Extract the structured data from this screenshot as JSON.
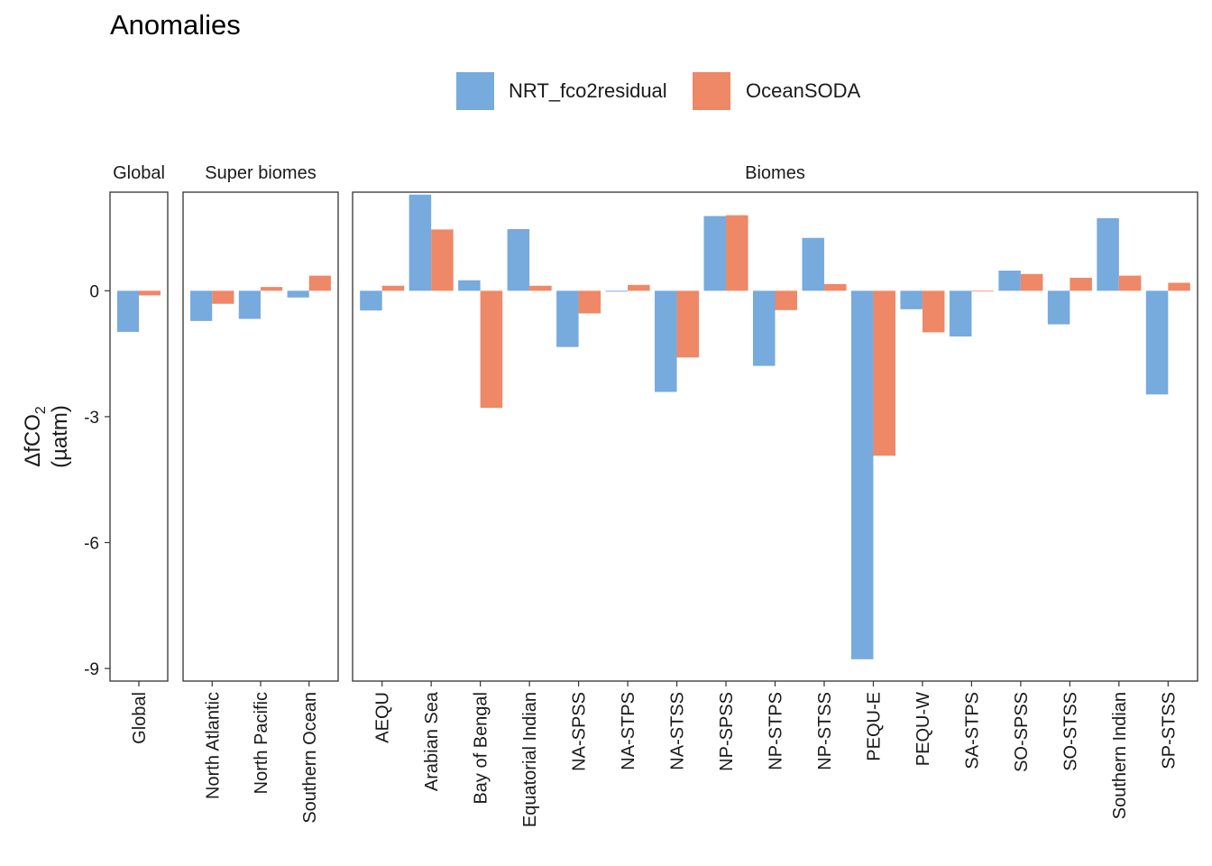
{
  "title": "Anomalies",
  "legend": {
    "position": "top",
    "items": [
      {
        "label": "NRT_fco2residual",
        "color": "#77AADD"
      },
      {
        "label": "OceanSODA",
        "color": "#EE8866"
      }
    ]
  },
  "y_axis": {
    "label_line1": "ΔfCO",
    "label_subscript": "2",
    "label_line2": "(µatm)",
    "ticks": [
      {
        "value": 0,
        "label": "0"
      },
      {
        "value": -3,
        "label": "-3"
      },
      {
        "value": -6,
        "label": "-6"
      },
      {
        "value": -9,
        "label": "-9"
      }
    ]
  },
  "chart_data": {
    "type": "bar",
    "title": "Anomalies",
    "ylabel": "ΔfCO2 (µatm)",
    "ylim": [
      -9.3,
      2.35
    ],
    "grid": false,
    "series_names": [
      "NRT_fco2residual",
      "OceanSODA"
    ],
    "panels": [
      {
        "strip": "Global",
        "categories": [
          "Global"
        ],
        "series": [
          {
            "name": "NRT_fco2residual",
            "values": [
              -0.98
            ]
          },
          {
            "name": "OceanSODA",
            "values": [
              -0.11
            ]
          }
        ]
      },
      {
        "strip": "Super biomes",
        "categories": [
          "North Atlantic",
          "North Pacific",
          "Southern Ocean"
        ],
        "series": [
          {
            "name": "NRT_fco2residual",
            "values": [
              -0.72,
              -0.67,
              -0.16
            ]
          },
          {
            "name": "OceanSODA",
            "values": [
              -0.31,
              0.09,
              0.36
            ]
          }
        ]
      },
      {
        "strip": "Biomes",
        "categories": [
          "AEQU",
          "Arabian Sea",
          "Bay of Bengal",
          "Equatorial Indian",
          "NA-SPSS",
          "NA-STPS",
          "NA-STSS",
          "NP-SPSS",
          "NP-STPS",
          "NP-STSS",
          "PEQU-E",
          "PEQU-W",
          "SA-STPS",
          "SO-SPSS",
          "SO-STSS",
          "Southern Indian",
          "SP-STSS"
        ],
        "series": [
          {
            "name": "NRT_fco2residual",
            "values": [
              -0.47,
              2.29,
              0.25,
              1.47,
              -1.34,
              -0.02,
              -2.41,
              1.78,
              -1.79,
              1.26,
              -8.78,
              -0.44,
              -1.09,
              0.48,
              -0.8,
              1.73,
              -2.47
            ]
          },
          {
            "name": "OceanSODA",
            "values": [
              0.12,
              1.46,
              -2.79,
              0.12,
              -0.54,
              0.14,
              -1.59,
              1.8,
              -0.46,
              0.16,
              -3.93,
              -0.99,
              0.0,
              0.4,
              0.31,
              0.36,
              0.19
            ]
          }
        ]
      }
    ]
  }
}
